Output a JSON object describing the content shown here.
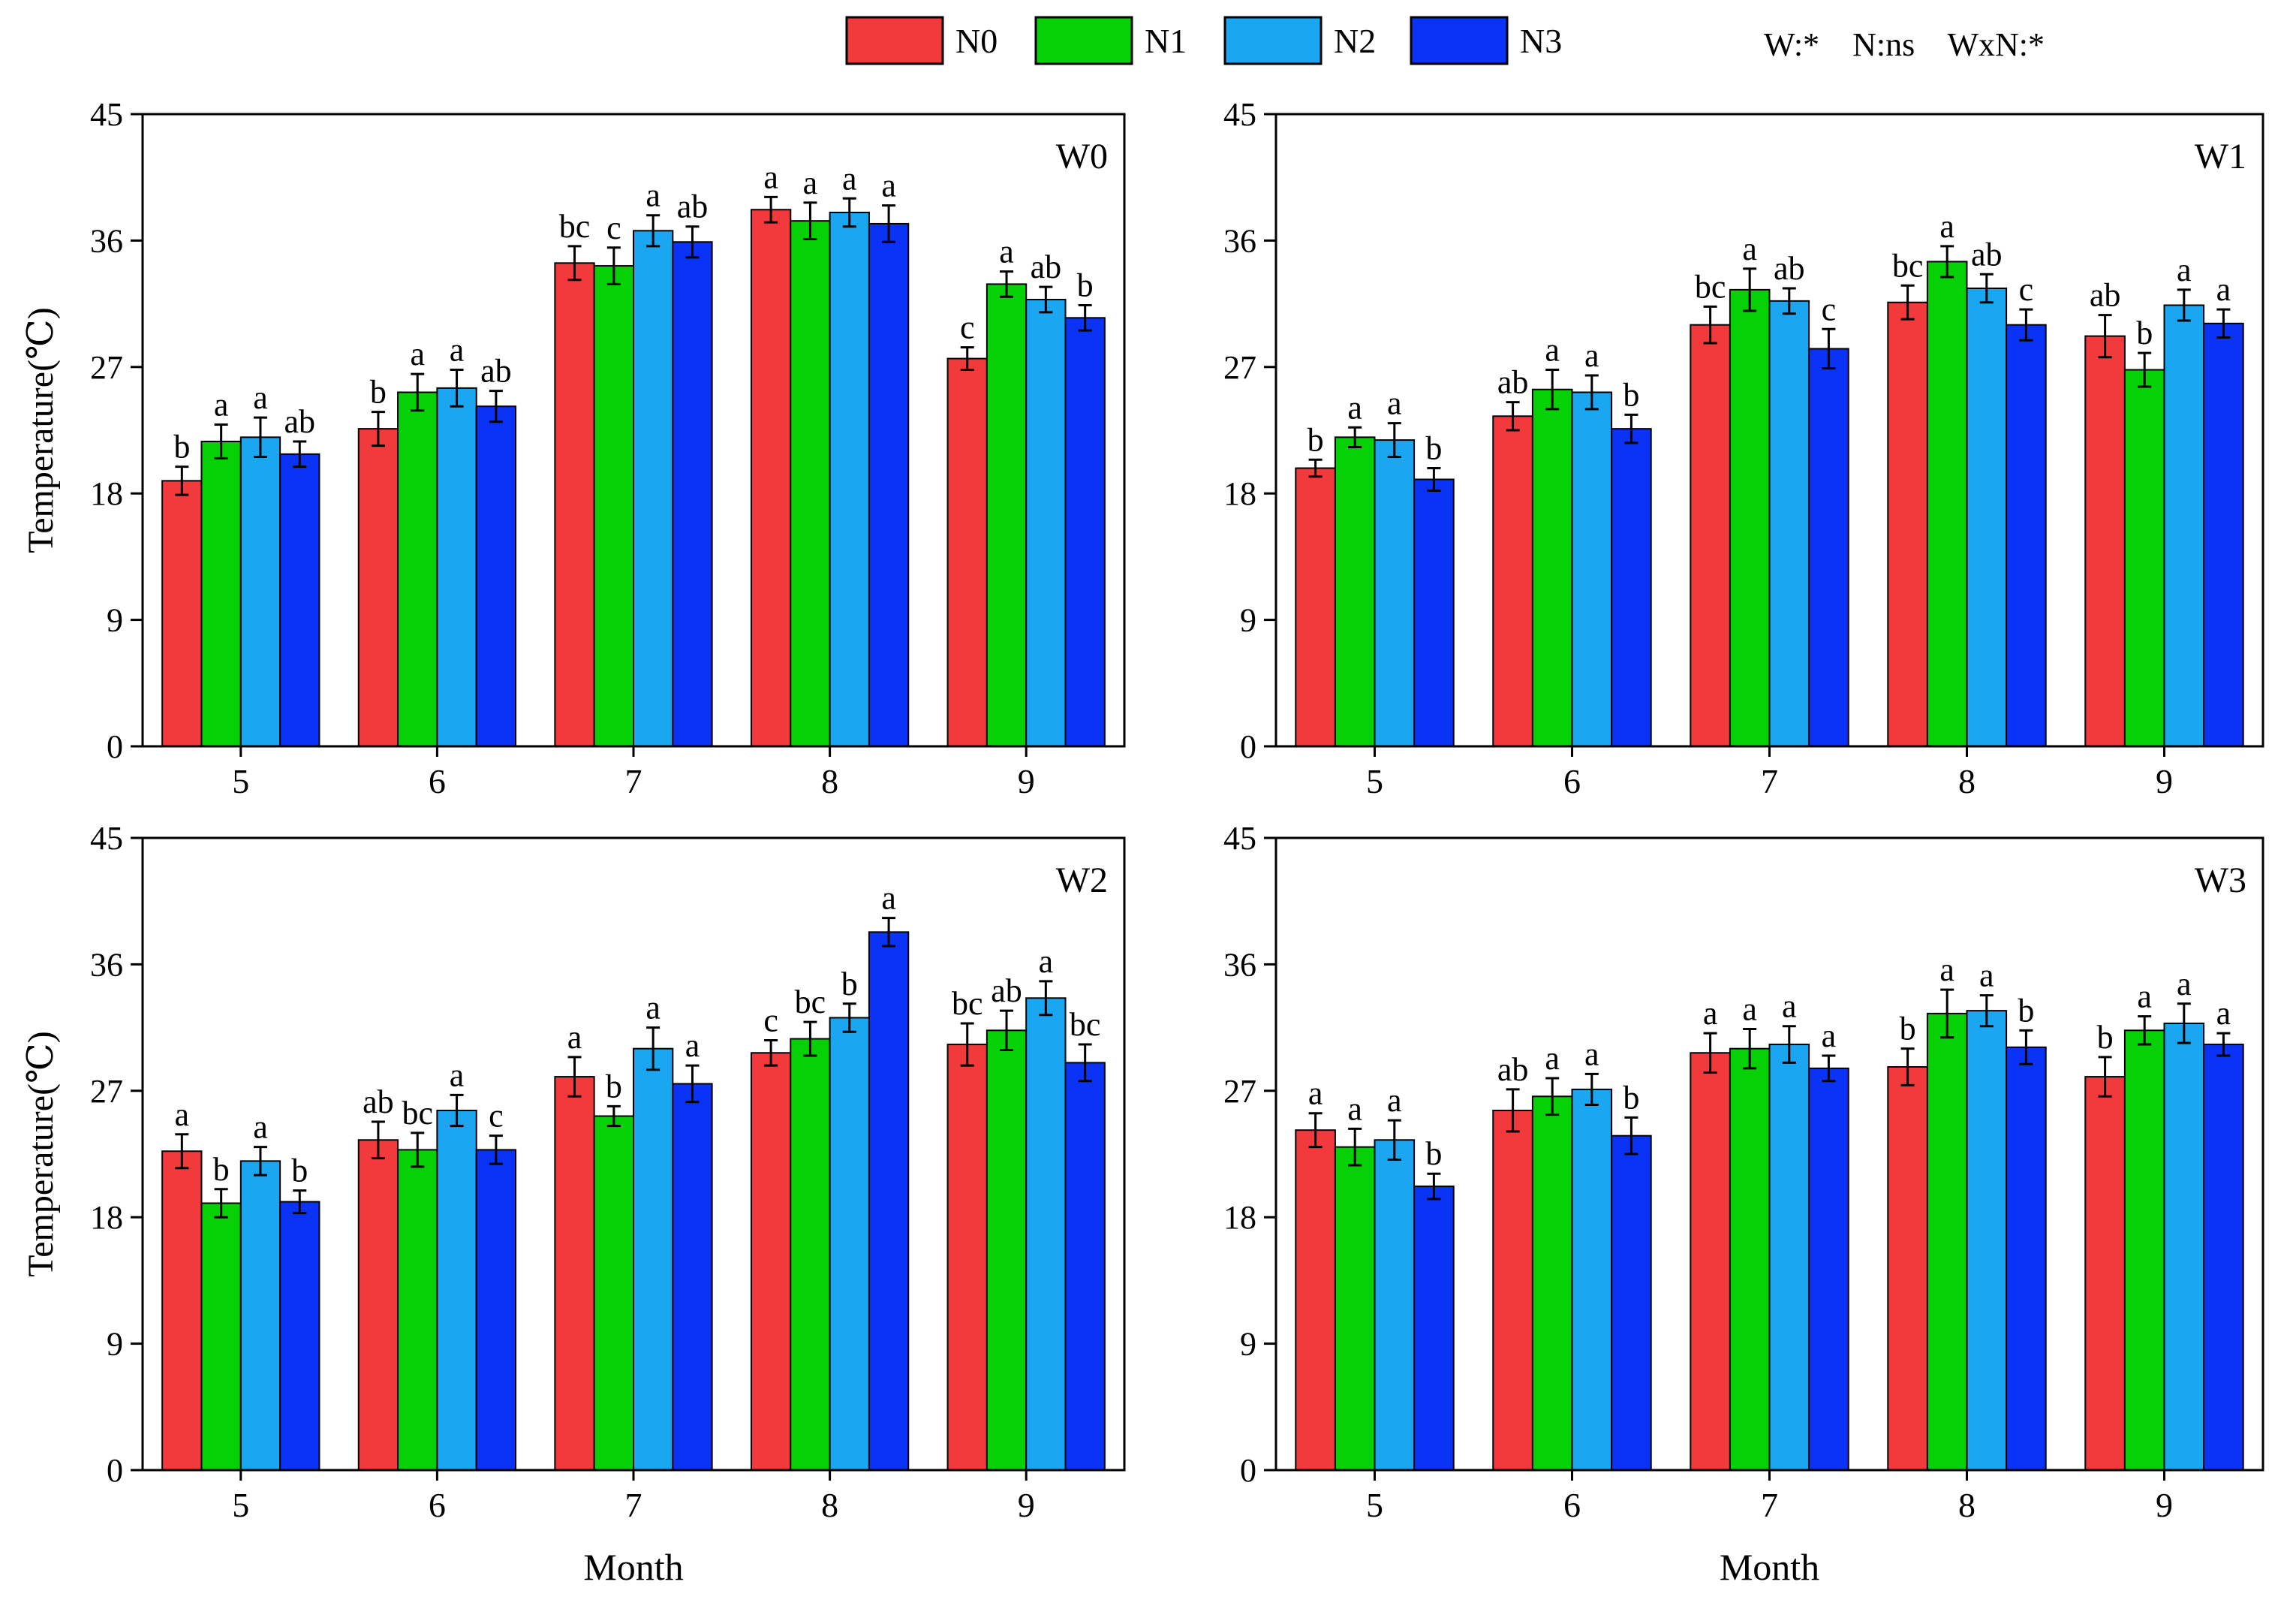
{
  "legend": {
    "items": [
      {
        "label": "N0",
        "color": "#f2393c"
      },
      {
        "label": "N1",
        "color": "#06d006"
      },
      {
        "label": "N2",
        "color": "#1ba6f2"
      },
      {
        "label": "N3",
        "color": "#0b33f5"
      }
    ],
    "stats": "W:*    N:ns    WxN:*"
  },
  "chart_data": [
    {
      "type": "bar",
      "title": "W0",
      "xlabel": "",
      "ylabel": "Temperature(℃)",
      "ylim": [
        0,
        45
      ],
      "yticks": [
        0,
        9,
        18,
        27,
        36,
        45
      ],
      "categories": [
        "5",
        "6",
        "7",
        "8",
        "9"
      ],
      "series": [
        {
          "name": "N0",
          "values": [
            18.9,
            22.6,
            34.4,
            38.2,
            27.6
          ],
          "errors": [
            1.0,
            1.2,
            1.2,
            0.9,
            0.8
          ],
          "letters": [
            "b",
            "b",
            "bc",
            "a",
            "c"
          ]
        },
        {
          "name": "N1",
          "values": [
            21.7,
            25.2,
            34.2,
            37.4,
            32.9
          ],
          "errors": [
            1.2,
            1.3,
            1.3,
            1.3,
            0.9
          ],
          "letters": [
            "a",
            "a",
            "c",
            "a",
            "a"
          ]
        },
        {
          "name": "N2",
          "values": [
            22.0,
            25.5,
            36.7,
            38.0,
            31.8
          ],
          "errors": [
            1.4,
            1.3,
            1.1,
            1.0,
            0.9
          ],
          "letters": [
            "a",
            "a",
            "a",
            "a",
            "ab"
          ]
        },
        {
          "name": "N3",
          "values": [
            20.8,
            24.2,
            35.9,
            37.2,
            30.5
          ],
          "errors": [
            0.9,
            1.1,
            1.1,
            1.3,
            0.9
          ],
          "letters": [
            "ab",
            "ab",
            "ab",
            "a",
            "b"
          ]
        }
      ]
    },
    {
      "type": "bar",
      "title": "W1",
      "xlabel": "",
      "ylabel": "",
      "ylim": [
        0,
        45
      ],
      "yticks": [
        0,
        9,
        18,
        27,
        36,
        45
      ],
      "categories": [
        "5",
        "6",
        "7",
        "8",
        "9"
      ],
      "series": [
        {
          "name": "N0",
          "values": [
            19.8,
            23.5,
            30.0,
            31.6,
            29.2
          ],
          "errors": [
            0.6,
            1.0,
            1.3,
            1.2,
            1.5
          ],
          "letters": [
            "b",
            "ab",
            "bc",
            "bc",
            "ab"
          ]
        },
        {
          "name": "N1",
          "values": [
            22.0,
            25.4,
            32.5,
            34.5,
            26.8
          ],
          "errors": [
            0.7,
            1.4,
            1.5,
            1.1,
            1.2
          ],
          "letters": [
            "a",
            "a",
            "a",
            "a",
            "b"
          ]
        },
        {
          "name": "N2",
          "values": [
            21.8,
            25.2,
            31.7,
            32.6,
            31.4
          ],
          "errors": [
            1.2,
            1.2,
            0.9,
            1.0,
            1.1
          ],
          "letters": [
            "a",
            "a",
            "ab",
            "ab",
            "a"
          ]
        },
        {
          "name": "N3",
          "values": [
            19.0,
            22.6,
            28.3,
            30.0,
            30.1
          ],
          "errors": [
            0.8,
            1.0,
            1.4,
            1.1,
            1.0
          ],
          "letters": [
            "b",
            "b",
            "c",
            "c",
            "a"
          ]
        }
      ]
    },
    {
      "type": "bar",
      "title": "W2",
      "xlabel": "Month",
      "ylabel": "Temperature(℃)",
      "ylim": [
        0,
        45
      ],
      "yticks": [
        0,
        9,
        18,
        27,
        36,
        45
      ],
      "categories": [
        "5",
        "6",
        "7",
        "8",
        "9"
      ],
      "series": [
        {
          "name": "N0",
          "values": [
            22.7,
            23.5,
            28.0,
            29.7,
            30.3
          ],
          "errors": [
            1.2,
            1.3,
            1.4,
            0.9,
            1.5
          ],
          "letters": [
            "a",
            "ab",
            "a",
            "c",
            "bc"
          ]
        },
        {
          "name": "N1",
          "values": [
            19.0,
            22.8,
            25.2,
            30.7,
            31.3
          ],
          "errors": [
            1.0,
            1.2,
            0.7,
            1.2,
            1.4
          ],
          "letters": [
            "b",
            "bc",
            "b",
            "bc",
            "ab"
          ]
        },
        {
          "name": "N2",
          "values": [
            22.0,
            25.6,
            30.0,
            32.2,
            33.6
          ],
          "errors": [
            1.0,
            1.1,
            1.5,
            1.0,
            1.2
          ],
          "letters": [
            "a",
            "a",
            "a",
            "b",
            "a"
          ]
        },
        {
          "name": "N3",
          "values": [
            19.1,
            22.8,
            27.5,
            38.3,
            29.0
          ],
          "errors": [
            0.8,
            1.0,
            1.3,
            1.0,
            1.3
          ],
          "letters": [
            "b",
            "c",
            "a",
            "a",
            "bc"
          ]
        }
      ]
    },
    {
      "type": "bar",
      "title": "W3",
      "xlabel": "Month",
      "ylabel": "",
      "ylim": [
        0,
        45
      ],
      "yticks": [
        0,
        9,
        18,
        27,
        36,
        45
      ],
      "categories": [
        "5",
        "6",
        "7",
        "8",
        "9"
      ],
      "series": [
        {
          "name": "N0",
          "values": [
            24.2,
            25.6,
            29.7,
            28.7,
            28.0
          ],
          "errors": [
            1.2,
            1.5,
            1.4,
            1.3,
            1.4
          ],
          "letters": [
            "a",
            "ab",
            "a",
            "b",
            "b"
          ]
        },
        {
          "name": "N1",
          "values": [
            23.0,
            26.6,
            30.0,
            32.5,
            31.3
          ],
          "errors": [
            1.3,
            1.3,
            1.4,
            1.7,
            1.0
          ],
          "letters": [
            "a",
            "a",
            "a",
            "a",
            "a"
          ]
        },
        {
          "name": "N2",
          "values": [
            23.5,
            27.1,
            30.3,
            32.7,
            31.8
          ],
          "errors": [
            1.4,
            1.1,
            1.3,
            1.1,
            1.4
          ],
          "letters": [
            "a",
            "a",
            "a",
            "a",
            "a"
          ]
        },
        {
          "name": "N3",
          "values": [
            20.2,
            23.8,
            28.6,
            30.1,
            30.3
          ],
          "errors": [
            0.9,
            1.3,
            0.9,
            1.2,
            0.8
          ],
          "letters": [
            "b",
            "b",
            "a",
            "b",
            "a"
          ]
        }
      ]
    }
  ]
}
